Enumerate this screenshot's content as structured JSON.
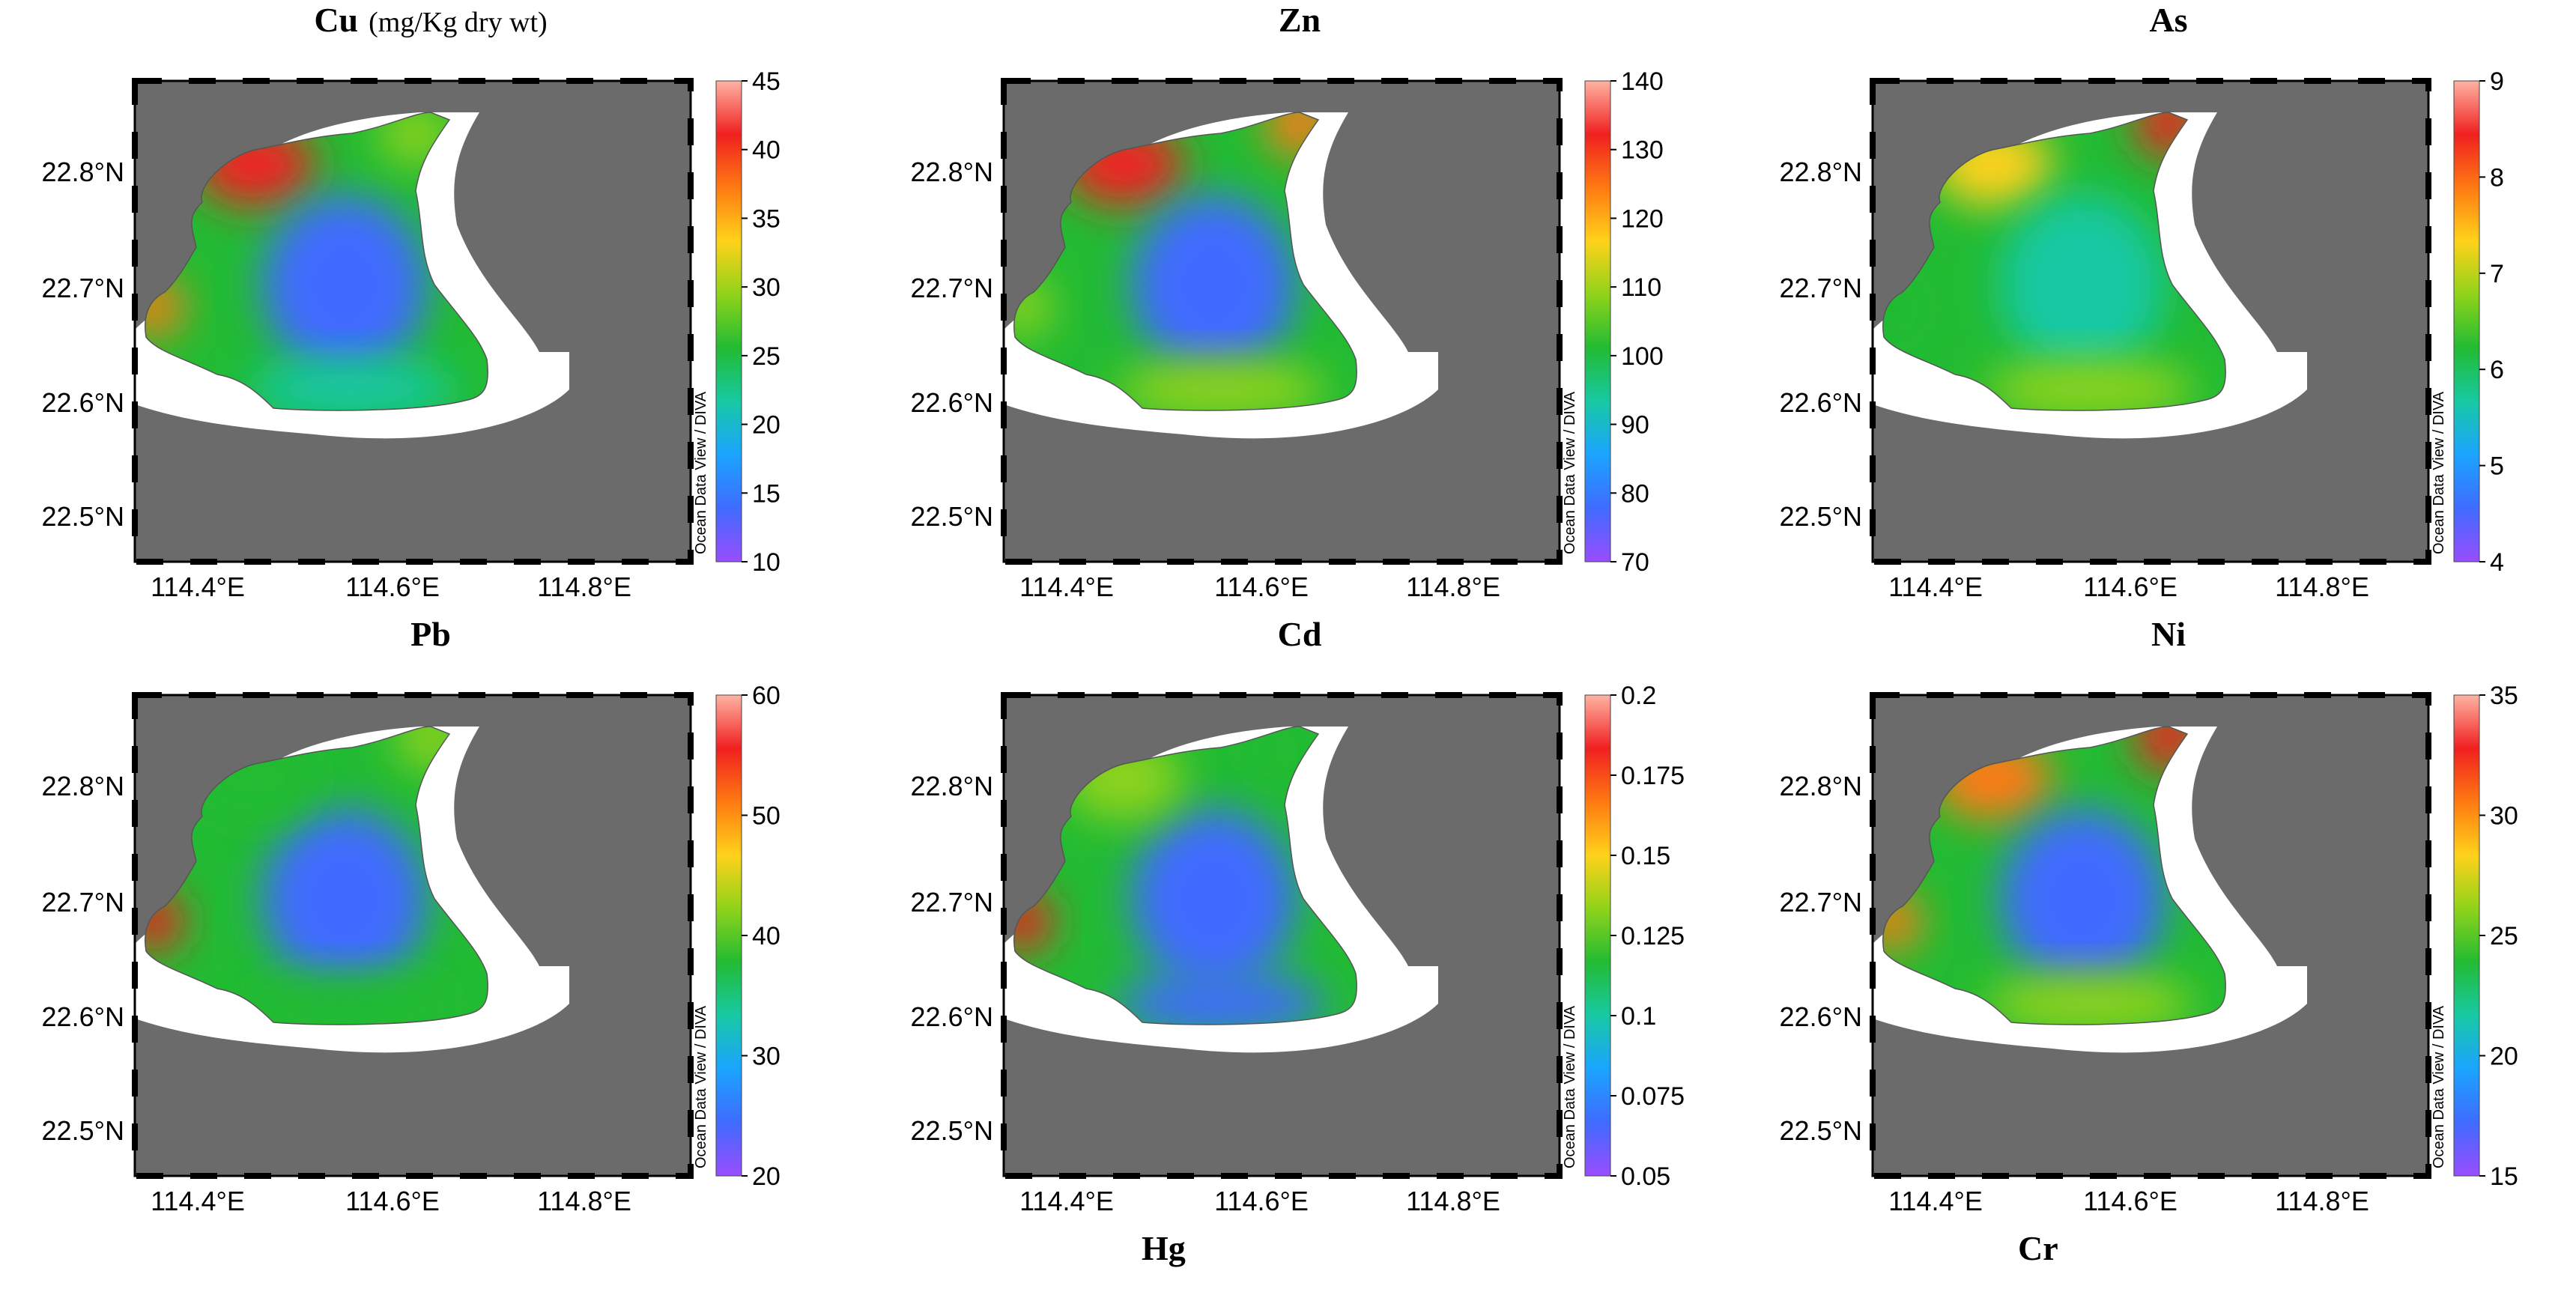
{
  "figure": {
    "bottom_labels": [
      "Hg",
      "Cr"
    ]
  },
  "shared": {
    "lat_ticks": [
      "22.8°N",
      "22.7°N",
      "22.6°N",
      "22.5°N"
    ],
    "lon_ticks": [
      "114.4°E",
      "114.6°E",
      "114.8°E"
    ],
    "watermark": "Ocean Data View / DIVA",
    "colors": {
      "land": "#6b6b6b",
      "nodata": "#ffffff",
      "frame": "#000000",
      "ramp": [
        "#9a4dff",
        "#3f6bff",
        "#1ba4ff",
        "#18c9a4",
        "#22bb33",
        "#8fd31a",
        "#ffd21a",
        "#ff7a12",
        "#f02020",
        "#ffb3a3"
      ]
    }
  },
  "panels": [
    {
      "metal": "Cu",
      "unit_label": "(mg/Kg dry wt)",
      "colorbar_ticks": [
        "45",
        "40",
        "35",
        "30",
        "25",
        "20",
        "15",
        "10"
      ],
      "hotspots": [
        {
          "name": "northwest",
          "level": 0.85
        },
        {
          "name": "west-coast",
          "level": 0.8
        },
        {
          "name": "center",
          "level": 0.1
        },
        {
          "name": "south",
          "level": 0.3
        },
        {
          "name": "north",
          "level": 0.5
        }
      ]
    },
    {
      "metal": "Zn",
      "unit_label": "",
      "colorbar_ticks": [
        "140",
        "130",
        "120",
        "110",
        "100",
        "90",
        "80",
        "70"
      ],
      "hotspots": [
        {
          "name": "northwest",
          "level": 0.85
        },
        {
          "name": "northeast",
          "level": 0.8
        },
        {
          "name": "center",
          "level": 0.1
        },
        {
          "name": "south",
          "level": 0.5
        },
        {
          "name": "west-coast",
          "level": 0.6
        }
      ]
    },
    {
      "metal": "As",
      "unit_label": "",
      "colorbar_ticks": [
        "9",
        "8",
        "7",
        "6",
        "5",
        "4"
      ],
      "hotspots": [
        {
          "name": "northeast",
          "level": 0.85
        },
        {
          "name": "northwest",
          "level": 0.65
        },
        {
          "name": "center",
          "level": 0.35
        },
        {
          "name": "south",
          "level": 0.55
        },
        {
          "name": "west-coast",
          "level": 0.45
        }
      ]
    },
    {
      "metal": "Pb",
      "unit_label": "",
      "colorbar_ticks": [
        "60",
        "50",
        "40",
        "30",
        "20"
      ],
      "hotspots": [
        {
          "name": "west-coast",
          "level": 0.85
        },
        {
          "name": "northeast",
          "level": 0.6
        },
        {
          "name": "center",
          "level": 0.1
        },
        {
          "name": "south",
          "level": 0.45
        },
        {
          "name": "northwest",
          "level": 0.4
        }
      ]
    },
    {
      "metal": "Cd",
      "unit_label": "",
      "colorbar_ticks": [
        "0.2",
        "0.175",
        "0.15",
        "0.125",
        "0.1",
        "0.075",
        "0.05"
      ],
      "hotspots": [
        {
          "name": "west-coast",
          "level": 0.85
        },
        {
          "name": "north",
          "level": 0.45
        },
        {
          "name": "center",
          "level": 0.1
        },
        {
          "name": "south",
          "level": 0.1
        },
        {
          "name": "northwest",
          "level": 0.5
        }
      ]
    },
    {
      "metal": "Ni",
      "unit_label": "",
      "colorbar_ticks": [
        "35",
        "30",
        "25",
        "20",
        "15"
      ],
      "hotspots": [
        {
          "name": "northwest",
          "level": 0.8
        },
        {
          "name": "northeast",
          "level": 0.85
        },
        {
          "name": "center",
          "level": 0.15
        },
        {
          "name": "south",
          "level": 0.5
        },
        {
          "name": "west-coast",
          "level": 0.8
        }
      ]
    }
  ]
}
